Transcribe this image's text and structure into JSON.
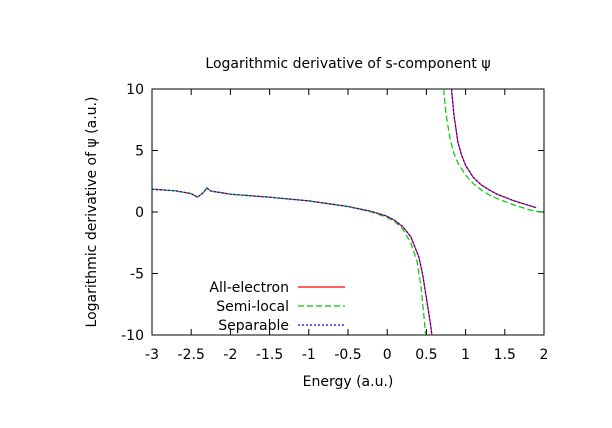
{
  "chart_data": {
    "type": "line",
    "title": "Logarithmic derivative of s-component ψ",
    "xlabel": "Energy (a.u.)",
    "ylabel": "Logarithmic derivative of ψ (a.u.)",
    "xlim": [
      -3,
      2
    ],
    "ylim": [
      -10,
      10
    ],
    "x_ticks": [
      -3,
      -2.5,
      -2,
      -1.5,
      -1,
      -0.5,
      0,
      0.5,
      1,
      1.5,
      2
    ],
    "x_tick_labels": [
      "-3",
      "-2.5",
      "-2",
      "-1.5",
      "-1",
      "-0.5",
      "0",
      "0.5",
      "1",
      "1.5",
      "2"
    ],
    "y_ticks": [
      10,
      5,
      0,
      -5,
      -10
    ],
    "y_tick_labels": [
      "10",
      "5",
      "0",
      "-5",
      "-10"
    ],
    "grid": false,
    "legend_position": "bottom-left",
    "series": [
      {
        "name": "All-electron",
        "color": "#ff0000",
        "dash": "solid",
        "segments": [
          [
            [
              -3,
              1.85
            ],
            [
              -2.7,
              1.72
            ],
            [
              -2.5,
              1.5
            ],
            [
              -2.42,
              1.2
            ],
            [
              -2.35,
              1.55
            ],
            [
              -2.3,
              1.95
            ],
            [
              -2.25,
              1.7
            ],
            [
              -2.1,
              1.55
            ],
            [
              -2.0,
              1.45
            ],
            [
              -1.5,
              1.2
            ],
            [
              -1.0,
              0.9
            ],
            [
              -0.5,
              0.45
            ],
            [
              -0.2,
              0.05
            ],
            [
              0.0,
              -0.35
            ],
            [
              0.1,
              -0.7
            ],
            [
              0.2,
              -1.2
            ],
            [
              0.3,
              -2.0
            ],
            [
              0.4,
              -3.6
            ],
            [
              0.45,
              -5.0
            ],
            [
              0.5,
              -7.0
            ],
            [
              0.55,
              -9.0
            ],
            [
              0.57,
              -10
            ]
          ],
          [
            [
              0.82,
              10
            ],
            [
              0.85,
              8.0
            ],
            [
              0.9,
              5.7
            ],
            [
              0.95,
              4.6
            ],
            [
              1.0,
              3.8
            ],
            [
              1.1,
              2.8
            ],
            [
              1.2,
              2.2
            ],
            [
              1.3,
              1.8
            ],
            [
              1.4,
              1.45
            ],
            [
              1.5,
              1.2
            ],
            [
              1.6,
              0.95
            ],
            [
              1.7,
              0.75
            ],
            [
              1.8,
              0.55
            ],
            [
              1.9,
              0.35
            ]
          ]
        ]
      },
      {
        "name": "Semi-local",
        "color": "#00cc00",
        "dash": "dashed",
        "segments": [
          [
            [
              -3,
              1.85
            ],
            [
              -2.7,
              1.72
            ],
            [
              -2.5,
              1.5
            ],
            [
              -2.42,
              1.2
            ],
            [
              -2.35,
              1.55
            ],
            [
              -2.3,
              1.95
            ],
            [
              -2.25,
              1.7
            ],
            [
              -2.1,
              1.55
            ],
            [
              -2.0,
              1.45
            ],
            [
              -1.5,
              1.2
            ],
            [
              -1.0,
              0.9
            ],
            [
              -0.5,
              0.45
            ],
            [
              -0.2,
              0.0
            ],
            [
              0.0,
              -0.45
            ],
            [
              0.1,
              -0.8
            ],
            [
              0.2,
              -1.4
            ],
            [
              0.3,
              -2.5
            ],
            [
              0.38,
              -4.0
            ],
            [
              0.43,
              -6.0
            ],
            [
              0.47,
              -8.5
            ],
            [
              0.49,
              -10
            ]
          ],
          [
            [
              0.72,
              10
            ],
            [
              0.75,
              8.0
            ],
            [
              0.8,
              6.0
            ],
            [
              0.85,
              4.8
            ],
            [
              0.9,
              4.0
            ],
            [
              1.0,
              3.0
            ],
            [
              1.1,
              2.3
            ],
            [
              1.2,
              1.8
            ],
            [
              1.3,
              1.4
            ],
            [
              1.4,
              1.1
            ],
            [
              1.5,
              0.85
            ],
            [
              1.6,
              0.6
            ],
            [
              1.7,
              0.4
            ],
            [
              1.8,
              0.2
            ],
            [
              1.9,
              0.05
            ],
            [
              2.0,
              0.0
            ]
          ]
        ]
      },
      {
        "name": "Separable",
        "color": "#0000ff",
        "dash": "dotted",
        "segments": [
          [
            [
              -3,
              1.85
            ],
            [
              -2.7,
              1.72
            ],
            [
              -2.5,
              1.5
            ],
            [
              -2.42,
              1.2
            ],
            [
              -2.35,
              1.55
            ],
            [
              -2.3,
              1.95
            ],
            [
              -2.25,
              1.7
            ],
            [
              -2.1,
              1.55
            ],
            [
              -2.0,
              1.45
            ],
            [
              -1.5,
              1.2
            ],
            [
              -1.0,
              0.9
            ],
            [
              -0.5,
              0.45
            ],
            [
              -0.2,
              0.05
            ],
            [
              0.0,
              -0.35
            ],
            [
              0.1,
              -0.7
            ],
            [
              0.2,
              -1.2
            ],
            [
              0.3,
              -2.0
            ],
            [
              0.4,
              -3.6
            ],
            [
              0.45,
              -5.0
            ],
            [
              0.5,
              -7.0
            ],
            [
              0.55,
              -9.0
            ],
            [
              0.57,
              -10
            ]
          ],
          [
            [
              0.82,
              10
            ],
            [
              0.85,
              8.0
            ],
            [
              0.9,
              5.7
            ],
            [
              0.95,
              4.6
            ],
            [
              1.0,
              3.8
            ],
            [
              1.1,
              2.8
            ],
            [
              1.2,
              2.2
            ],
            [
              1.3,
              1.8
            ],
            [
              1.4,
              1.45
            ],
            [
              1.5,
              1.2
            ],
            [
              1.6,
              0.95
            ],
            [
              1.7,
              0.75
            ],
            [
              1.8,
              0.55
            ],
            [
              1.9,
              0.35
            ]
          ]
        ]
      }
    ]
  }
}
